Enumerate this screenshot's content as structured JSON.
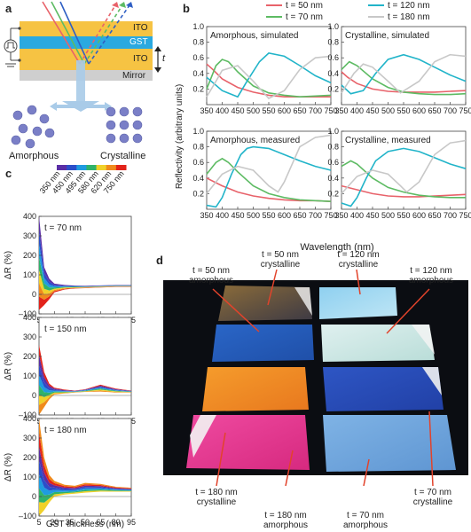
{
  "panel_letters": {
    "a": "a",
    "b": "b",
    "c": "c",
    "d": "d"
  },
  "panel_a": {
    "layers": [
      "ITO",
      "GST",
      "ITO",
      "Mirror"
    ],
    "thickness_symbol": "t",
    "states": [
      "Amorphous",
      "Crystalline"
    ],
    "colors": {
      "ito": "#f6c343",
      "gst": "#2aa9e0",
      "mirror": "#cfcfcf"
    }
  },
  "panel_b": {
    "legend": [
      "t = 50 nm",
      "t = 70 nm",
      "t = 120 nm",
      "t = 180 nm"
    ],
    "legend_colors": [
      "#e8626a",
      "#5dbb63",
      "#21b4c9",
      "#c8c8c8"
    ],
    "ylabel": "Reflectivity (arbitrary units)",
    "xlabel": "Wavelength (nm)",
    "xticks": [
      "350",
      "400",
      "450",
      "500",
      "550",
      "600",
      "650",
      "700",
      "750"
    ],
    "yticks": [
      "0.2",
      "0.4",
      "0.6",
      "0.8",
      "1.0"
    ]
  },
  "panel_c": {
    "color_bar_labels": [
      "350 nm",
      "450 nm",
      "495 nm",
      "580 nm",
      "620 nm",
      "750 nm"
    ],
    "ylabel": "ΔR (%)",
    "xlabel": "GST thickness (nm)",
    "xticks": [
      "5",
      "20",
      "35",
      "50",
      "65",
      "80",
      "95"
    ],
    "yticks": [
      "400",
      "300",
      "200",
      "100",
      "0",
      "–100"
    ],
    "yticks_short": [
      "400",
      "300",
      "200",
      "100",
      "0",
      "–100"
    ]
  },
  "panel_d": {
    "labels": [
      {
        "t": "t = 50 nm",
        "s": "crystalline"
      },
      {
        "t": "t = 120 nm",
        "s": "crystalline"
      },
      {
        "t": "t = 50 nm",
        "s": "amorphous"
      },
      {
        "t": "t = 120 nm",
        "s": "amorphous"
      },
      {
        "t": "t = 180 nm",
        "s": "crystalline"
      },
      {
        "t": "t = 70 nm",
        "s": "crystalline"
      },
      {
        "t": "t = 180 nm",
        "s": "amorphous"
      },
      {
        "t": "t = 70 nm",
        "s": "amorphous"
      }
    ]
  },
  "chart_data": [
    {
      "type": "line",
      "title": "Amorphous, simulated",
      "xlabel": "Wavelength (nm)",
      "ylabel": "Reflectivity (arbitrary units)",
      "xlim": [
        350,
        750
      ],
      "ylim": [
        0,
        1.0
      ],
      "series": [
        {
          "name": "t = 50 nm",
          "color": "#e8626a",
          "x": [
            350,
            370,
            400,
            450,
            500,
            550,
            600,
            650,
            700,
            750
          ],
          "y": [
            0.52,
            0.45,
            0.33,
            0.22,
            0.16,
            0.12,
            0.1,
            0.1,
            0.1,
            0.1
          ]
        },
        {
          "name": "t = 70 nm",
          "color": "#5dbb63",
          "x": [
            350,
            380,
            400,
            420,
            450,
            500,
            550,
            600,
            650,
            700,
            750
          ],
          "y": [
            0.2,
            0.5,
            0.58,
            0.55,
            0.42,
            0.24,
            0.15,
            0.12,
            0.1,
            0.11,
            0.12
          ]
        },
        {
          "name": "t = 120 nm",
          "color": "#21b4c9",
          "x": [
            350,
            400,
            450,
            480,
            520,
            550,
            600,
            650,
            700,
            750
          ],
          "y": [
            0.35,
            0.18,
            0.1,
            0.3,
            0.55,
            0.66,
            0.62,
            0.5,
            0.37,
            0.28
          ]
        },
        {
          "name": "t = 180 nm",
          "color": "#c8c8c8",
          "x": [
            350,
            380,
            400,
            450,
            500,
            550,
            600,
            650,
            700,
            750
          ],
          "y": [
            0.1,
            0.3,
            0.44,
            0.5,
            0.3,
            0.08,
            0.18,
            0.45,
            0.6,
            0.62
          ]
        }
      ]
    },
    {
      "type": "line",
      "title": "Crystalline, simulated",
      "xlabel": "Wavelength (nm)",
      "ylabel": "Reflectivity (arbitrary units)",
      "xlim": [
        350,
        750
      ],
      "ylim": [
        0,
        1.0
      ],
      "series": [
        {
          "name": "t = 50 nm",
          "color": "#e8626a",
          "x": [
            350,
            370,
            400,
            450,
            500,
            550,
            600,
            650,
            700,
            750
          ],
          "y": [
            0.42,
            0.35,
            0.27,
            0.2,
            0.17,
            0.16,
            0.16,
            0.16,
            0.17,
            0.18
          ]
        },
        {
          "name": "t = 70 nm",
          "color": "#5dbb63",
          "x": [
            350,
            375,
            400,
            450,
            500,
            550,
            600,
            650,
            700,
            750
          ],
          "y": [
            0.45,
            0.55,
            0.5,
            0.33,
            0.22,
            0.16,
            0.14,
            0.13,
            0.13,
            0.14
          ]
        },
        {
          "name": "t = 120 nm",
          "color": "#21b4c9",
          "x": [
            350,
            380,
            420,
            460,
            500,
            550,
            600,
            650,
            700,
            750
          ],
          "y": [
            0.25,
            0.14,
            0.18,
            0.4,
            0.58,
            0.64,
            0.58,
            0.48,
            0.38,
            0.3
          ]
        },
        {
          "name": "t = 180 nm",
          "color": "#c8c8c8",
          "x": [
            350,
            390,
            420,
            450,
            500,
            540,
            600,
            650,
            700,
            750
          ],
          "y": [
            0.15,
            0.4,
            0.52,
            0.48,
            0.3,
            0.15,
            0.3,
            0.55,
            0.64,
            0.62
          ]
        }
      ]
    },
    {
      "type": "line",
      "title": "Amorphous, measured",
      "xlabel": "Wavelength (nm)",
      "ylabel": "Reflectivity (arbitrary units)",
      "xlim": [
        350,
        750
      ],
      "ylim": [
        0,
        1.0
      ],
      "series": [
        {
          "name": "t = 50 nm",
          "color": "#e8626a",
          "x": [
            350,
            380,
            400,
            450,
            500,
            550,
            600,
            650,
            700,
            750
          ],
          "y": [
            0.4,
            0.34,
            0.3,
            0.22,
            0.17,
            0.14,
            0.12,
            0.11,
            0.11,
            0.1
          ]
        },
        {
          "name": "t = 70 nm",
          "color": "#5dbb63",
          "x": [
            350,
            380,
            400,
            420,
            450,
            500,
            550,
            600,
            650,
            700,
            750
          ],
          "y": [
            0.45,
            0.6,
            0.65,
            0.6,
            0.48,
            0.3,
            0.2,
            0.15,
            0.12,
            0.11,
            0.1
          ]
        },
        {
          "name": "t = 120 nm",
          "color": "#21b4c9",
          "x": [
            350,
            380,
            400,
            430,
            460,
            480,
            500,
            550,
            600,
            650,
            700,
            750
          ],
          "y": [
            0.05,
            0.03,
            0.15,
            0.45,
            0.7,
            0.78,
            0.8,
            0.78,
            0.7,
            0.62,
            0.55,
            0.5
          ]
        },
        {
          "name": "t = 180 nm",
          "color": "#c8c8c8",
          "x": [
            350,
            400,
            450,
            500,
            550,
            580,
            600,
            650,
            700,
            750
          ],
          "y": [
            0.2,
            0.45,
            0.55,
            0.5,
            0.3,
            0.22,
            0.35,
            0.8,
            0.92,
            0.95
          ]
        }
      ]
    },
    {
      "type": "line",
      "title": "Crystalline, measured",
      "xlabel": "Wavelength (nm)",
      "ylabel": "Reflectivity (arbitrary units)",
      "xlim": [
        350,
        750
      ],
      "ylim": [
        0,
        1.0
      ],
      "series": [
        {
          "name": "t = 50 nm",
          "color": "#e8626a",
          "x": [
            350,
            400,
            450,
            500,
            550,
            600,
            650,
            700,
            750
          ],
          "y": [
            0.3,
            0.25,
            0.2,
            0.17,
            0.16,
            0.16,
            0.17,
            0.18,
            0.19
          ]
        },
        {
          "name": "t = 70 nm",
          "color": "#5dbb63",
          "x": [
            350,
            380,
            400,
            450,
            500,
            550,
            600,
            650,
            700,
            750
          ],
          "y": [
            0.55,
            0.62,
            0.58,
            0.4,
            0.28,
            0.22,
            0.18,
            0.16,
            0.15,
            0.15
          ]
        },
        {
          "name": "t = 120 nm",
          "color": "#21b4c9",
          "x": [
            350,
            380,
            400,
            430,
            460,
            500,
            550,
            600,
            650,
            700,
            750
          ],
          "y": [
            0.08,
            0.04,
            0.15,
            0.4,
            0.62,
            0.74,
            0.78,
            0.74,
            0.66,
            0.58,
            0.52
          ]
        },
        {
          "name": "t = 180 nm",
          "color": "#c8c8c8",
          "x": [
            350,
            400,
            450,
            500,
            540,
            560,
            600,
            650,
            700,
            750
          ],
          "y": [
            0.2,
            0.42,
            0.5,
            0.45,
            0.3,
            0.22,
            0.35,
            0.7,
            0.85,
            0.88
          ]
        }
      ]
    },
    {
      "type": "area",
      "title": "t = 70 nm",
      "xlabel": "GST thickness (nm)",
      "ylabel": "ΔR (%)",
      "xlim": [
        5,
        95
      ],
      "ylim": [
        -100,
        400
      ],
      "x": [
        5,
        10,
        15,
        20,
        30,
        40,
        50,
        65,
        80,
        95
      ],
      "upper": [
        400,
        140,
        80,
        55,
        48,
        45,
        44,
        46,
        48,
        48
      ],
      "lower": [
        -80,
        -55,
        -25,
        10,
        25,
        30,
        32,
        35,
        38,
        38
      ]
    },
    {
      "type": "area",
      "title": "t = 150 nm",
      "xlabel": "GST thickness (nm)",
      "ylabel": "ΔR (%)",
      "xlim": [
        5,
        95
      ],
      "ylim": [
        -100,
        400
      ],
      "x": [
        5,
        10,
        15,
        20,
        30,
        40,
        50,
        65,
        80,
        95
      ],
      "upper": [
        260,
        120,
        60,
        40,
        30,
        25,
        32,
        55,
        35,
        25
      ],
      "lower": [
        -100,
        -60,
        -20,
        5,
        10,
        15,
        18,
        20,
        15,
        15
      ]
    },
    {
      "type": "area",
      "title": "t = 180 nm",
      "xlabel": "GST thickness (nm)",
      "ylabel": "ΔR (%)",
      "xlim": [
        5,
        95
      ],
      "ylim": [
        -100,
        400
      ],
      "x": [
        5,
        10,
        15,
        20,
        30,
        40,
        50,
        65,
        80,
        95
      ],
      "upper": [
        400,
        200,
        110,
        80,
        60,
        55,
        70,
        65,
        50,
        45
      ],
      "lower": [
        -100,
        -70,
        -30,
        0,
        10,
        15,
        20,
        25,
        25,
        25
      ]
    }
  ]
}
